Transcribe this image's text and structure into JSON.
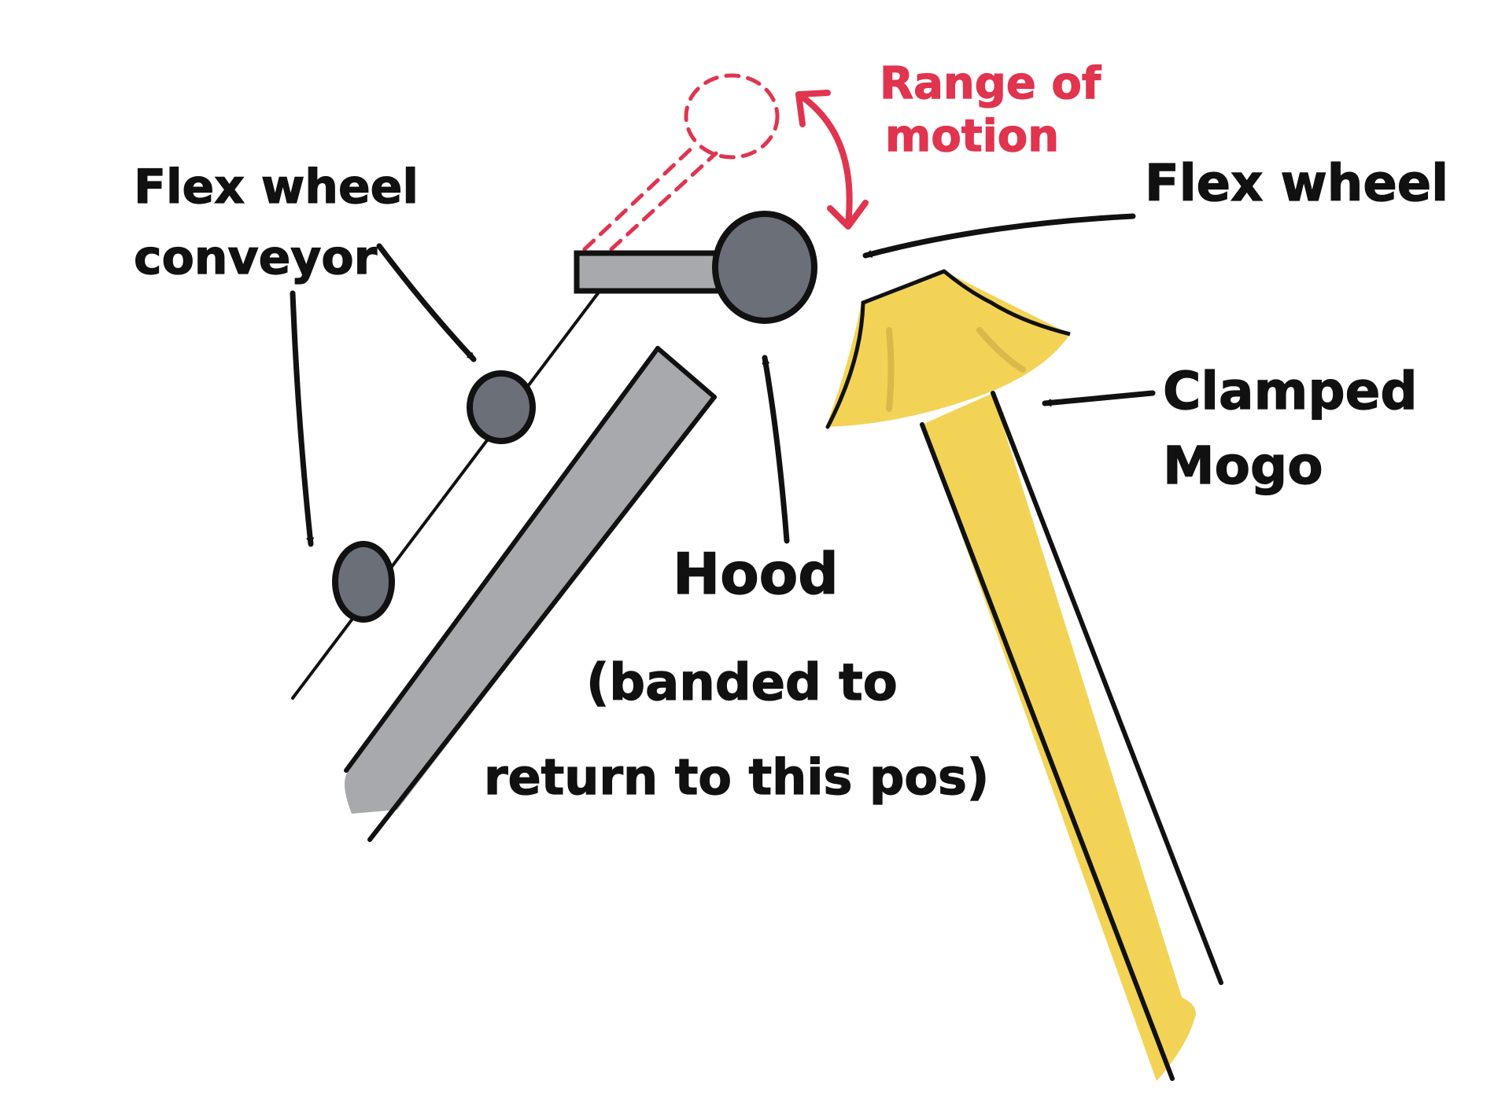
{
  "labels": {
    "conveyor_line1": "Flex wheel",
    "conveyor_line2": "conveyor",
    "range_line1": "Range of",
    "range_line2": "motion",
    "flex_wheel": "Flex wheel",
    "mogo_line1": "Clamped",
    "mogo_line2": "Mogo",
    "hood_line1": "Hood",
    "hood_line2": "(banded to",
    "hood_line3": "return to this pos)"
  },
  "colors": {
    "ink": "#111111",
    "accent_red": "#e0344f",
    "wheel_fill": "#6b6f78",
    "hood_bar_fill": "#a8a9ac",
    "mogo_yellow": "#f2d356",
    "mogo_shade": "#d9b94a",
    "background": "#ffffff"
  }
}
